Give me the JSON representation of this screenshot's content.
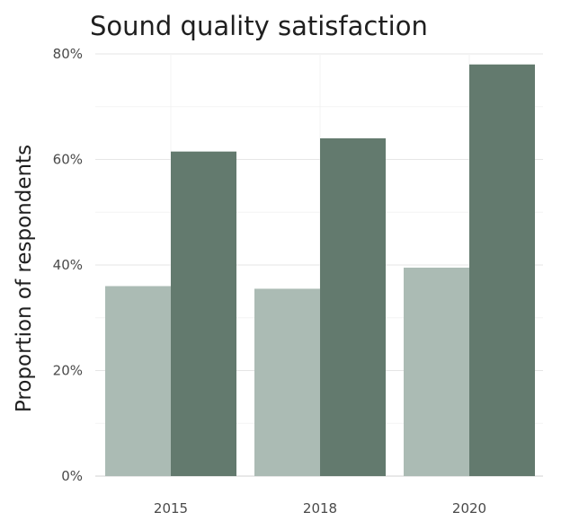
{
  "chart_data": {
    "type": "bar",
    "title": "Sound quality satisfaction",
    "xlabel": "",
    "ylabel": "Proportion of respondents",
    "categories": [
      "2015",
      "2018",
      "2020"
    ],
    "series": [
      {
        "values": [
          0.36,
          0.355,
          0.395
        ],
        "color": "#abbbb4"
      },
      {
        "values": [
          0.615,
          0.64,
          0.78
        ],
        "color": "#637a6e"
      }
    ],
    "ylim": [
      0,
      0.8
    ],
    "yticks": [
      0,
      0.2,
      0.4,
      0.6,
      0.8
    ],
    "ytick_labels": [
      "0%",
      "20%",
      "40%",
      "60%",
      "80%"
    ],
    "grid": true,
    "legend": "none"
  }
}
